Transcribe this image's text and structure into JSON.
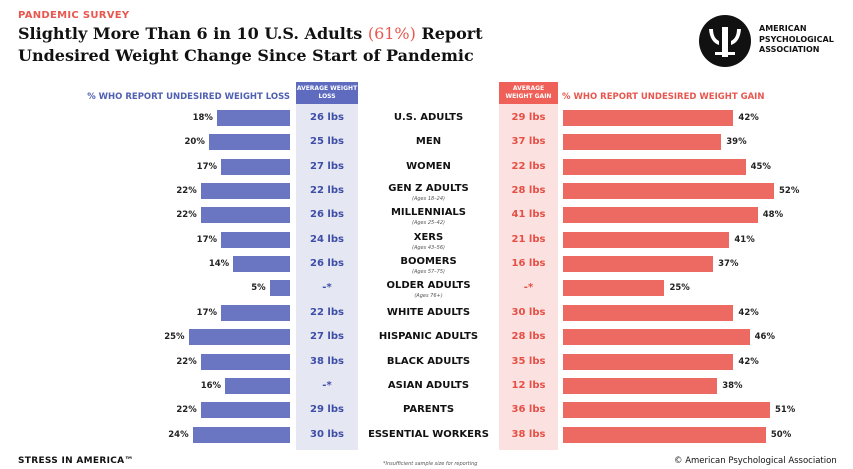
{
  "header": {
    "eyebrow": "PANDEMIC SURVEY",
    "title_line1_prefix": "Slightly More Than 6 in 10 U.S. Adults ",
    "title_highlight": "(61%)",
    "title_line1_suffix": " Report",
    "title_line2": "Undesired Weight Change Since Start of Pandemic",
    "org_name_lines": [
      "AMERICAN",
      "PSYCHOLOGICAL",
      "ASSOCIATION"
    ]
  },
  "colors": {
    "loss": "#6b76c2",
    "gain": "#ec6a61",
    "accent_red": "#e8574f"
  },
  "footer": {
    "brand": "STRESS IN AMERICA™",
    "footnote": "*Insufficient sample size for reporting",
    "copyright": "© American Psychological Association"
  },
  "chart_data": {
    "type": "bar",
    "subtype": "diverging-horizontal",
    "title": "Slightly More Than 6 in 10 U.S. Adults (61%) Report Undesired Weight Change Since Start of Pandemic",
    "loss_axis_label": "% WHO REPORT UNDESIRED WEIGHT LOSS",
    "gain_axis_label": "% WHO REPORT UNDESIRED WEIGHT GAIN",
    "avg_loss_label": "AVERAGE WEIGHT LOSS",
    "avg_gain_label": "AVERAGE WEIGHT GAIN",
    "xlim": [
      0,
      52
    ],
    "categories": [
      "U.S. ADULTS",
      "MEN",
      "WOMEN",
      "GEN Z ADULTS",
      "MILLENNIALS",
      "XERS",
      "BOOMERS",
      "OLDER ADULTS",
      "WHITE ADULTS",
      "HISPANIC ADULTS",
      "BLACK ADULTS",
      "ASIAN ADULTS",
      "PARENTS",
      "ESSENTIAL WORKERS"
    ],
    "subtitles": [
      "",
      "",
      "",
      "(Ages 18–24)",
      "(Ages 25–42)",
      "(Ages 43–56)",
      "(Ages 57–75)",
      "(Ages 76+)",
      "",
      "",
      "",
      "",
      "",
      ""
    ],
    "series": [
      {
        "name": "Undesired weight loss",
        "values": [
          18,
          20,
          17,
          22,
          22,
          17,
          14,
          5,
          17,
          25,
          22,
          16,
          22,
          24
        ],
        "labels": [
          "18%",
          "20%",
          "17%",
          "22%",
          "22%",
          "17%",
          "14%",
          "5%",
          "17%",
          "25%",
          "22%",
          "16%",
          "22%",
          "24%"
        ],
        "averages": [
          "26 lbs",
          "25 lbs",
          "27 lbs",
          "22 lbs",
          "26 lbs",
          "24 lbs",
          "26 lbs",
          "-*",
          "22 lbs",
          "27 lbs",
          "38 lbs",
          "-*",
          "29 lbs",
          "30 lbs"
        ]
      },
      {
        "name": "Undesired weight gain",
        "values": [
          42,
          39,
          45,
          52,
          48,
          41,
          37,
          25,
          42,
          46,
          42,
          38,
          51,
          50
        ],
        "labels": [
          "42%",
          "39%",
          "45%",
          "52%",
          "48%",
          "41%",
          "37%",
          "25%",
          "42%",
          "46%",
          "42%",
          "38%",
          "51%",
          "50%"
        ],
        "averages": [
          "29 lbs",
          "37 lbs",
          "22 lbs",
          "28 lbs",
          "41 lbs",
          "21 lbs",
          "16 lbs",
          "-*",
          "30 lbs",
          "28 lbs",
          "35 lbs",
          "12 lbs",
          "36 lbs",
          "38 lbs"
        ]
      }
    ]
  }
}
